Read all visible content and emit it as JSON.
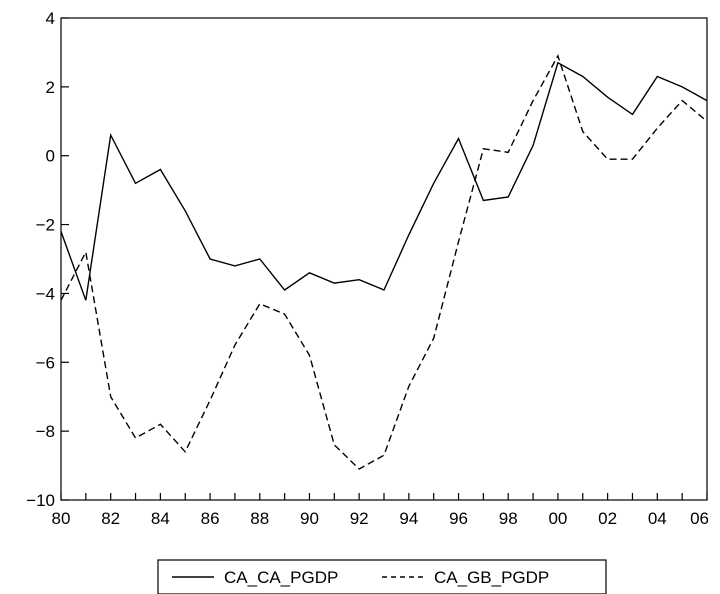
{
  "chart_data": {
    "type": "line",
    "x_tick_labels": [
      "80",
      "82",
      "84",
      "86",
      "88",
      "90",
      "92",
      "94",
      "96",
      "98",
      "00",
      "02",
      "04",
      "06"
    ],
    "x_ticks": [
      1980,
      1982,
      1984,
      1986,
      1988,
      1990,
      1992,
      1994,
      1996,
      1998,
      2000,
      2002,
      2004,
      2006
    ],
    "xlim": [
      1980,
      2006
    ],
    "ylim": [
      -10,
      4
    ],
    "y_ticks": [
      4,
      2,
      0,
      -2,
      -4,
      -6,
      -8,
      -10
    ],
    "y_tick_labels": [
      "4",
      "2",
      "0",
      "−2",
      "−4",
      "−6",
      "−8",
      "−10"
    ],
    "grid": false,
    "legend_position": "bottom-center",
    "x": [
      1980,
      1981,
      1982,
      1983,
      1984,
      1985,
      1986,
      1987,
      1988,
      1989,
      1990,
      1991,
      1992,
      1993,
      1994,
      1995,
      1996,
      1997,
      1998,
      1999,
      2000,
      2001,
      2002,
      2003,
      2004,
      2005,
      2006
    ],
    "series": [
      {
        "name": "CA_CA_PGDP",
        "style": "solid",
        "values": [
          -2.2,
          -4.2,
          0.6,
          -0.8,
          -0.4,
          -1.6,
          -3.0,
          -3.2,
          -3.0,
          -3.9,
          -3.4,
          -3.7,
          -3.6,
          -3.9,
          -2.3,
          -0.8,
          0.5,
          -1.3,
          -1.2,
          0.3,
          2.7,
          2.3,
          1.7,
          1.2,
          2.3,
          2.0,
          1.6
        ]
      },
      {
        "name": "CA_GB_PGDP",
        "style": "dashed",
        "values": [
          -4.2,
          -2.8,
          -7.0,
          -8.2,
          -7.8,
          -8.6,
          -7.1,
          -5.5,
          -4.3,
          -4.6,
          -5.8,
          -8.4,
          -9.1,
          -8.7,
          -6.7,
          -5.3,
          -2.5,
          0.2,
          0.1,
          1.6,
          2.9,
          0.7,
          -0.1,
          -0.1,
          0.8,
          1.6,
          1.0
        ]
      }
    ]
  }
}
